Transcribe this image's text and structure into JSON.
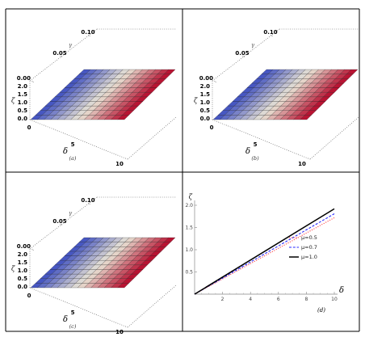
{
  "colors": {
    "cool": "#3b4cc0",
    "mid": "#e9e4d6",
    "warm": "#b40426",
    "border": "#000000"
  },
  "chart_data": [
    {
      "type": "surface",
      "panel": "a",
      "caption": "(a)",
      "axes": {
        "gamma": {
          "label": "γ",
          "ticks": [
            "0.00",
            "0.05",
            "0.10"
          ]
        },
        "zeta": {
          "label": "ζ",
          "ticks": [
            "0.0",
            "0.5",
            "1.0",
            "1.5",
            "2.0"
          ]
        },
        "delta": {
          "label": "δ",
          "ticks": [
            "0",
            "5",
            "10"
          ]
        }
      },
      "delta_range": [
        0,
        10
      ],
      "gamma_range": [
        0,
        0.1
      ],
      "zeta_range": [
        0,
        2
      ],
      "surface": "ζ increases linearly with δ, independent of γ"
    },
    {
      "type": "surface",
      "panel": "b",
      "caption": "(b)",
      "axes": {
        "gamma": {
          "label": "γ",
          "ticks": [
            "0.00",
            "0.05",
            "0.10"
          ]
        },
        "zeta": {
          "label": "ζ",
          "ticks": [
            "0.0",
            "0.5",
            "1.0",
            "1.5",
            "2.0"
          ]
        },
        "delta": {
          "label": "δ",
          "ticks": [
            "0",
            "5",
            "10"
          ]
        }
      },
      "delta_range": [
        0,
        10
      ],
      "gamma_range": [
        0,
        0.1
      ],
      "zeta_range": [
        0,
        2
      ],
      "surface": "ζ increases linearly with δ, independent of γ"
    },
    {
      "type": "surface",
      "panel": "c",
      "caption": "(c)",
      "axes": {
        "gamma": {
          "label": "γ",
          "ticks": [
            "0.00",
            "0.05",
            "0.10"
          ]
        },
        "zeta": {
          "label": "ζ",
          "ticks": [
            "0.0",
            "0.5",
            "1.0",
            "1.5",
            "2.0"
          ]
        },
        "delta": {
          "label": "δ",
          "ticks": [
            "0",
            "5",
            "10"
          ]
        }
      },
      "delta_range": [
        0,
        10
      ],
      "gamma_range": [
        0,
        0.1
      ],
      "zeta_range": [
        0,
        2
      ],
      "surface": "ζ increases linearly with δ, independent of γ"
    },
    {
      "type": "line",
      "panel": "d",
      "caption": "(d)",
      "xlabel": "δ",
      "ylabel": "ζ",
      "xlim": [
        0,
        10
      ],
      "ylim": [
        0,
        2.0
      ],
      "xticks": [
        2,
        4,
        6,
        8,
        10
      ],
      "yticks": [
        0.5,
        1.0,
        1.5,
        2.0
      ],
      "legend_position": "right",
      "series": [
        {
          "name": "μ=0.5",
          "x": [
            0,
            10
          ],
          "y": [
            0,
            1.72
          ],
          "color": "#ff4b4b",
          "style": "dotted"
        },
        {
          "name": "μ=0.7",
          "x": [
            0,
            10
          ],
          "y": [
            0,
            1.81
          ],
          "color": "#2a2aff",
          "style": "dashed"
        },
        {
          "name": "μ=1.0",
          "x": [
            0,
            10
          ],
          "y": [
            0,
            1.92
          ],
          "color": "#000000",
          "style": "solid"
        }
      ]
    }
  ]
}
